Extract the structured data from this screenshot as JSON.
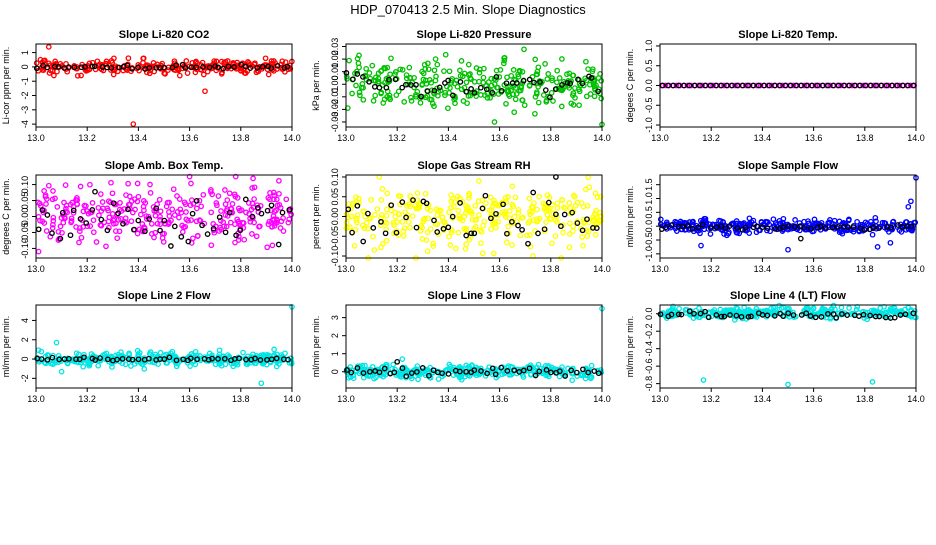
{
  "figure": {
    "title": "HDP_070413  2.5 Min. Slope Diagnostics"
  },
  "chart_data": [
    {
      "id": "co2",
      "type": "scatter",
      "title": "Slope Li-820 CO2",
      "xlabel": "",
      "ylabel": "Li-cor ppm per min.",
      "color": "#ff0000",
      "overlay_color": "#000000",
      "xlim": [
        13.0,
        14.0
      ],
      "ylim": [
        -4.2,
        1.6
      ],
      "xticks": [
        13.0,
        13.2,
        13.4,
        13.6,
        13.8,
        14.0
      ],
      "xtick_labels": [
        "13.0",
        "13.2",
        "13.4",
        "13.6",
        "13.8",
        "14.0"
      ],
      "yticks": [
        -4,
        -3,
        -2,
        -1,
        0,
        1
      ],
      "ytick_labels": [
        "-4",
        "-3",
        "-2",
        "-1",
        "0",
        "1"
      ],
      "series": [
        {
          "name": "all",
          "n": 260,
          "center": 0.0,
          "spread": 0.25,
          "outliers": [
            [
              13.05,
              1.4
            ],
            [
              13.38,
              -4.0
            ],
            [
              13.66,
              -1.7
            ],
            [
              13.07,
              -0.6
            ]
          ]
        },
        {
          "name": "2.5 min",
          "n": 48,
          "center": 0.0,
          "spread": 0.08,
          "outliers": []
        }
      ]
    },
    {
      "id": "press",
      "type": "scatter",
      "title": "Slope Li-820 Pressure",
      "xlabel": "",
      "ylabel": "kPa per min.",
      "color": "#00c000",
      "overlay_color": "#000000",
      "xlim": [
        13.0,
        14.0
      ],
      "ylim": [
        -0.034,
        0.032
      ],
      "xticks": [
        13.0,
        13.2,
        13.4,
        13.6,
        13.8,
        14.0
      ],
      "xtick_labels": [
        "13.0",
        "13.2",
        "13.4",
        "13.6",
        "13.8",
        "14.0"
      ],
      "yticks": [
        -0.03,
        -0.02,
        -0.01,
        0.0,
        0.01,
        0.02,
        0.03
      ],
      "ytick_labels": [
        "-0.03",
        "-0.02",
        "-0.01",
        "0.00",
        "0.01",
        "0.02",
        "0.03"
      ],
      "series": [
        {
          "name": "all",
          "n": 320,
          "center": 0.0,
          "spread": 0.009,
          "outliers": [
            [
              14.0,
              -0.032
            ],
            [
              13.58,
              -0.03
            ],
            [
              13.35,
              0.02
            ],
            [
              13.62,
              0.021
            ]
          ]
        },
        {
          "name": "2.5 min",
          "n": 48,
          "center": 0.0,
          "spread": 0.004,
          "outliers": []
        }
      ]
    },
    {
      "id": "temp",
      "type": "scatter",
      "title": "Slope Li-820 Temp.",
      "xlabel": "",
      "ylabel": "degees C per min.",
      "color": "#ff00ff",
      "overlay_color": "#000000",
      "xlim": [
        13.0,
        14.0
      ],
      "ylim": [
        -1.05,
        1.05
      ],
      "xticks": [
        13.0,
        13.2,
        13.4,
        13.6,
        13.8,
        14.0
      ],
      "xtick_labels": [
        "13.0",
        "13.2",
        "13.4",
        "13.6",
        "13.8",
        "14.0"
      ],
      "yticks": [
        -1.0,
        -0.5,
        0.0,
        0.5,
        1.0
      ],
      "ytick_labels": [
        "-1.0",
        "-0.5",
        "0.0",
        "0.5",
        "1.0"
      ],
      "series": [
        {
          "name": "all",
          "n": 70,
          "center": 0.0,
          "spread": 0.0,
          "outliers": []
        },
        {
          "name": "2.5 min",
          "n": 48,
          "center": 0.0,
          "spread": 0.0,
          "outliers": []
        }
      ]
    },
    {
      "id": "amb",
      "type": "scatter",
      "title": "Slope Amb. Box Temp.",
      "xlabel": "",
      "ylabel": "degrees C per min.",
      "color": "#ff00ff",
      "overlay_color": "#000000",
      "xlim": [
        13.0,
        14.0
      ],
      "ylim": [
        -0.13,
        0.13
      ],
      "xticks": [
        13.0,
        13.2,
        13.4,
        13.6,
        13.8,
        14.0
      ],
      "xtick_labels": [
        "13.0",
        "13.2",
        "13.4",
        "13.6",
        "13.8",
        "14.0"
      ],
      "yticks": [
        -0.1,
        -0.05,
        0.0,
        0.05,
        0.1
      ],
      "ytick_labels": [
        "-0.10",
        "-0.05",
        "0.00",
        "0.05",
        "0.10"
      ],
      "series": [
        {
          "name": "all",
          "n": 330,
          "center": 0.01,
          "spread": 0.045,
          "outliers": [
            [
              13.01,
              -0.11
            ],
            [
              13.6,
              0.125
            ],
            [
              13.78,
              0.125
            ]
          ]
        },
        {
          "name": "2.5 min",
          "n": 48,
          "center": 0.0,
          "spread": 0.035,
          "outliers": []
        }
      ]
    },
    {
      "id": "rh",
      "type": "scatter",
      "title": "Slope Gas Stream RH",
      "xlabel": "",
      "ylabel": "percent per min.",
      "color": "#ffff00",
      "overlay_color": "#000000",
      "xlim": [
        13.0,
        14.0
      ],
      "ylim": [
        -0.105,
        0.105
      ],
      "xticks": [
        13.0,
        13.2,
        13.4,
        13.6,
        13.8,
        14.0
      ],
      "xtick_labels": [
        "13.0",
        "13.2",
        "13.4",
        "13.6",
        "13.8",
        "14.0"
      ],
      "yticks": [
        -0.1,
        -0.05,
        0.0,
        0.05,
        0.1
      ],
      "ytick_labels": [
        "-0.10",
        "-0.05",
        "0.00",
        "0.05",
        "0.10"
      ],
      "series": [
        {
          "name": "all",
          "n": 330,
          "center": 0.0,
          "spread": 0.04,
          "outliers": [
            [
              13.13,
              0.1
            ],
            [
              13.73,
              -0.1
            ]
          ]
        },
        {
          "name": "2.5 min",
          "n": 48,
          "center": 0.0,
          "spread": 0.03,
          "outliers": [
            [
              13.82,
              0.1
            ]
          ]
        }
      ]
    },
    {
      "id": "sflow",
      "type": "scatter",
      "title": "Slope Sample Flow",
      "xlabel": "",
      "ylabel": "ml/min per min.",
      "color": "#0000ff",
      "overlay_color": "#000000",
      "xlim": [
        13.0,
        14.0
      ],
      "ylim": [
        -1.15,
        1.85
      ],
      "xticks": [
        13.0,
        13.2,
        13.4,
        13.6,
        13.8,
        14.0
      ],
      "xtick_labels": [
        "13.0",
        "13.2",
        "13.4",
        "13.6",
        "13.8",
        "14.0"
      ],
      "yticks": [
        -1.0,
        -0.5,
        0.0,
        0.5,
        1.0,
        1.5
      ],
      "ytick_labels": [
        "-1.0",
        "-0.5",
        "0.0",
        "0.5",
        "1.0",
        "1.5"
      ],
      "series": [
        {
          "name": "all",
          "n": 330,
          "center": 0.0,
          "spread": 0.13,
          "outliers": [
            [
              14.0,
              1.75
            ],
            [
              13.98,
              0.9
            ],
            [
              13.97,
              0.7
            ],
            [
              13.85,
              -0.75
            ],
            [
              13.5,
              -0.85
            ],
            [
              13.9,
              -0.6
            ],
            [
              13.16,
              -0.7
            ]
          ]
        },
        {
          "name": "2.5 min",
          "n": 48,
          "center": -0.05,
          "spread": 0.05,
          "outliers": [
            [
              13.55,
              -0.45
            ]
          ]
        }
      ]
    },
    {
      "id": "l2",
      "type": "scatter",
      "title": "Slope Line 2 Flow",
      "xlabel": "",
      "ylabel": "ml/min per min.",
      "color": "#00e5e5",
      "overlay_color": "#000000",
      "xlim": [
        13.0,
        14.0
      ],
      "ylim": [
        -3.0,
        5.6
      ],
      "xticks": [
        13.0,
        13.2,
        13.4,
        13.6,
        13.8,
        14.0
      ],
      "xtick_labels": [
        "13.0",
        "13.2",
        "13.4",
        "13.6",
        "13.8",
        "14.0"
      ],
      "yticks": [
        -2,
        0,
        2,
        4
      ],
      "ytick_labels": [
        "-2",
        "0",
        "2",
        "4"
      ],
      "series": [
        {
          "name": "all",
          "n": 330,
          "center": 0.0,
          "spread": 0.35,
          "outliers": [
            [
              14.0,
              5.4
            ],
            [
              13.88,
              -2.5
            ],
            [
              13.08,
              1.7
            ],
            [
              13.1,
              -1.3
            ],
            [
              13.93,
              1.0
            ]
          ]
        },
        {
          "name": "2.5 min",
          "n": 48,
          "center": 0.0,
          "spread": 0.08,
          "outliers": []
        }
      ]
    },
    {
      "id": "l3",
      "type": "scatter",
      "title": "Slope Line 3 Flow",
      "xlabel": "",
      "ylabel": "ml/min per min.",
      "color": "#00e5e5",
      "overlay_color": "#000000",
      "xlim": [
        13.0,
        14.0
      ],
      "ylim": [
        -0.9,
        3.7
      ],
      "xticks": [
        13.0,
        13.2,
        13.4,
        13.6,
        13.8,
        14.0
      ],
      "xtick_labels": [
        "13.0",
        "13.2",
        "13.4",
        "13.6",
        "13.8",
        "14.0"
      ],
      "yticks": [
        0,
        1,
        2,
        3
      ],
      "ytick_labels": [
        "0",
        "1",
        "2",
        "3"
      ],
      "series": [
        {
          "name": "all",
          "n": 330,
          "center": 0.0,
          "spread": 0.18,
          "outliers": [
            [
              14.0,
              3.5
            ],
            [
              13.22,
              0.7
            ]
          ]
        },
        {
          "name": "2.5 min",
          "n": 48,
          "center": 0.0,
          "spread": 0.14,
          "outliers": [
            [
              13.2,
              0.55
            ]
          ]
        }
      ]
    },
    {
      "id": "l4",
      "type": "scatter",
      "title": "Slope Line 4 (LT) Flow",
      "xlabel": "",
      "ylabel": "ml/min per min.",
      "color": "#00e5e5",
      "overlay_color": "#000000",
      "xlim": [
        13.0,
        14.0
      ],
      "ylim": [
        -0.85,
        0.1
      ],
      "xticks": [
        13.0,
        13.2,
        13.4,
        13.6,
        13.8,
        14.0
      ],
      "xtick_labels": [
        "13.0",
        "13.2",
        "13.4",
        "13.6",
        "13.8",
        "14.0"
      ],
      "yticks": [
        -0.8,
        -0.6,
        -0.4,
        -0.2,
        0.0
      ],
      "ytick_labels": [
        "-0.8",
        "-0.6",
        "-0.4",
        "-0.2",
        "0.0"
      ],
      "series": [
        {
          "name": "all",
          "n": 300,
          "center": 0.01,
          "spread": 0.03,
          "outliers": [
            [
              13.17,
              -0.76
            ],
            [
              13.5,
              -0.81
            ],
            [
              13.83,
              -0.78
            ]
          ]
        },
        {
          "name": "2.5 min",
          "n": 48,
          "center": -0.02,
          "spread": 0.02,
          "outliers": []
        }
      ]
    }
  ]
}
